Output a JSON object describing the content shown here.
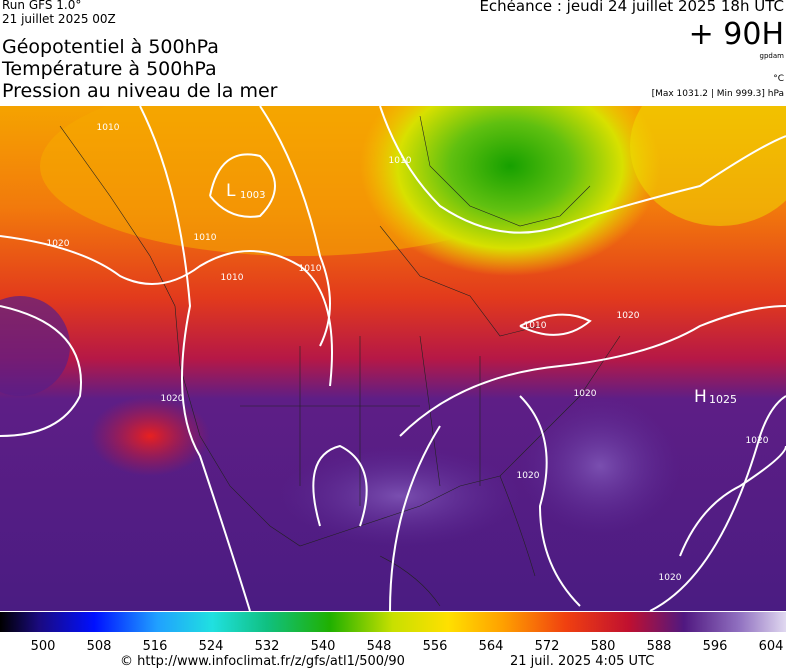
{
  "header": {
    "run": "Run GFS 1.0°",
    "date": "21 juillet 2025 00Z",
    "titles": [
      "Géopotentiel à 500hPa",
      "Température à 500hPa",
      "Pression au niveau de la mer"
    ],
    "echeance": "Echéance : jeudi 24 juillet 2025 18h UTC",
    "lead": "+ 90H",
    "unit_geo": "gpdam",
    "unit_temp": "°C",
    "pressure_range": "[Max 1031.2 | Min 999.3] hPa"
  },
  "map": {
    "contour_labels": [
      "1010",
      "1010",
      "1010",
      "1010",
      "1020",
      "1010",
      "1010",
      "1020",
      "1020",
      "1020",
      "1020",
      "1020",
      "1020"
    ],
    "lows": [
      {
        "symbol": "L",
        "value": "1003"
      }
    ],
    "highs": [
      {
        "symbol": "H",
        "value": "1025"
      }
    ]
  },
  "colorbar": {
    "ticks": [
      500,
      508,
      516,
      524,
      532,
      540,
      548,
      556,
      564,
      572,
      580,
      588,
      596,
      604
    ]
  },
  "footer": {
    "url": "© http://www.infoclimat.fr/z/gfs/atl1/500/90",
    "timestamp": "21 juil. 2025  4:05 UTC"
  }
}
